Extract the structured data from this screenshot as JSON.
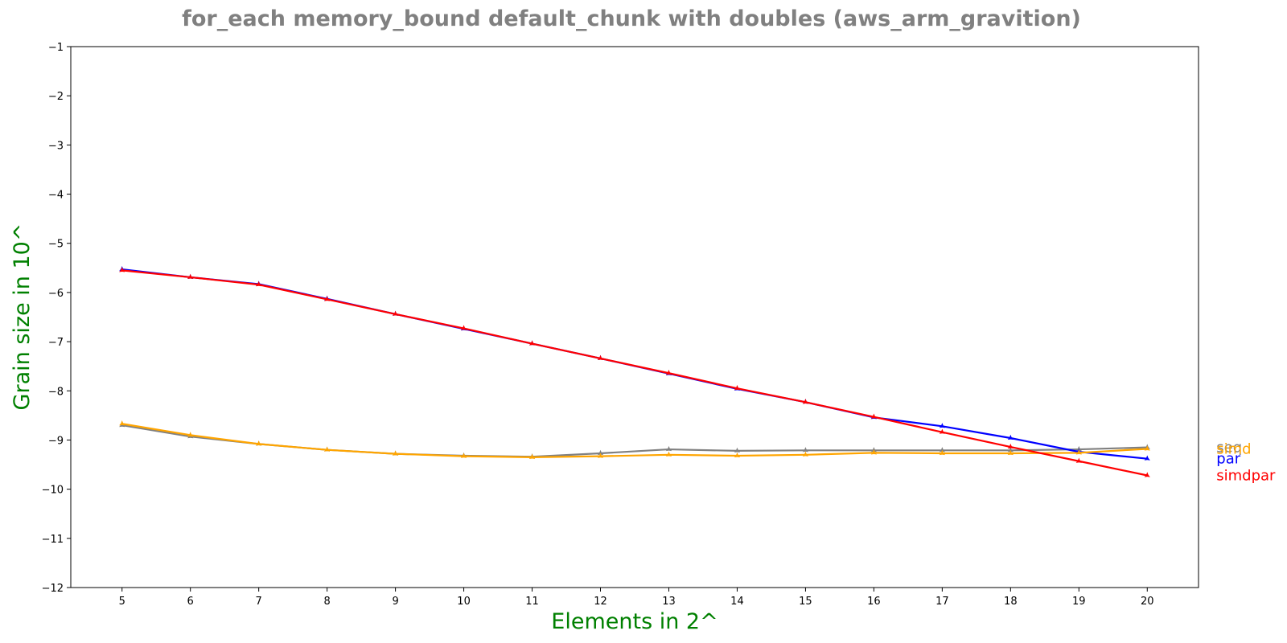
{
  "chart_data": {
    "type": "line",
    "title": "for_each memory_bound default_chunk with doubles  (aws_arm_gravition)",
    "xlabel": "Elements in 2^",
    "ylabel": "Grain size in 10^",
    "x": [
      5,
      6,
      7,
      8,
      9,
      10,
      11,
      12,
      13,
      14,
      15,
      16,
      17,
      18,
      19,
      20
    ],
    "xlim": [
      4.25,
      20.75
    ],
    "ylim": [
      -12,
      -1
    ],
    "yticks": [
      -1,
      -2,
      -3,
      -4,
      -5,
      -6,
      -7,
      -8,
      -9,
      -10,
      -11,
      -12
    ],
    "label_color": "#008000",
    "title_color": "#808080",
    "grid": false,
    "legend": "inline labels at right end of each line",
    "series": [
      {
        "name": "seq",
        "color": "#808080",
        "marker": "star",
        "values": [
          -8.7,
          -8.93,
          -9.08,
          -9.2,
          -9.28,
          -9.32,
          -9.34,
          -9.27,
          -9.19,
          -9.22,
          -9.21,
          -9.21,
          -9.21,
          -9.21,
          -9.19,
          -9.15
        ]
      },
      {
        "name": "par",
        "color": "#0000ff",
        "marker": "star",
        "values": [
          -5.53,
          -5.69,
          -5.83,
          -6.13,
          -6.44,
          -6.74,
          -7.04,
          -7.34,
          -7.65,
          -7.96,
          -8.23,
          -8.54,
          -8.72,
          -8.96,
          -9.24,
          -9.38
        ]
      },
      {
        "name": "simd",
        "color": "#ffa500",
        "marker": "star",
        "values": [
          -8.67,
          -8.9,
          -9.08,
          -9.2,
          -9.28,
          -9.33,
          -9.35,
          -9.33,
          -9.3,
          -9.32,
          -9.3,
          -9.26,
          -9.27,
          -9.27,
          -9.26,
          -9.18
        ]
      },
      {
        "name": "simdpar",
        "color": "#ff0000",
        "marker": "star",
        "values": [
          -5.55,
          -5.69,
          -5.84,
          -6.14,
          -6.44,
          -6.73,
          -7.04,
          -7.34,
          -7.64,
          -7.95,
          -8.23,
          -8.53,
          -8.84,
          -9.14,
          -9.43,
          -9.72
        ]
      }
    ]
  }
}
